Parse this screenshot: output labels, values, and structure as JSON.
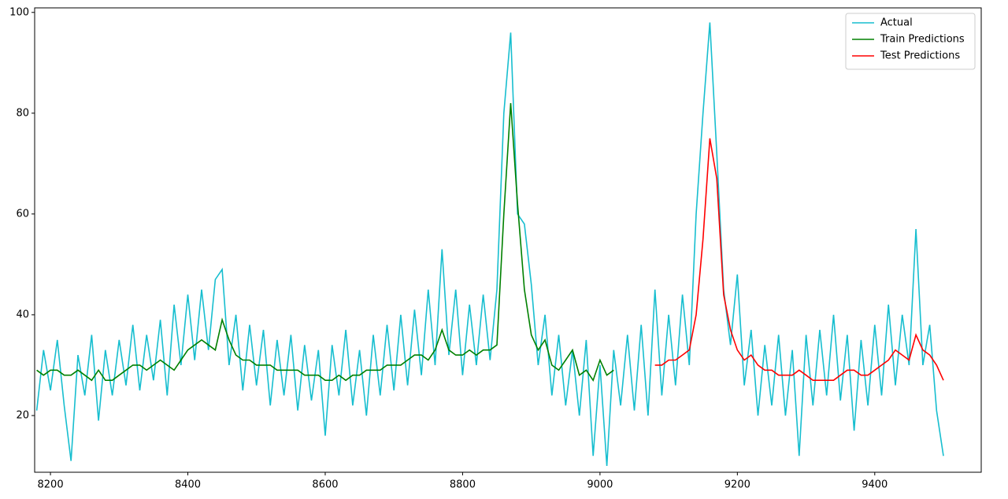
{
  "chart_data": {
    "type": "line",
    "x": [
      8180,
      8190,
      8200,
      8210,
      8220,
      8230,
      8240,
      8250,
      8260,
      8270,
      8280,
      8290,
      8300,
      8310,
      8320,
      8330,
      8340,
      8350,
      8360,
      8370,
      8380,
      8390,
      8400,
      8410,
      8420,
      8430,
      8440,
      8450,
      8460,
      8470,
      8480,
      8490,
      8500,
      8510,
      8520,
      8530,
      8540,
      8550,
      8560,
      8570,
      8580,
      8590,
      8600,
      8610,
      8620,
      8630,
      8640,
      8650,
      8660,
      8670,
      8680,
      8690,
      8700,
      8710,
      8720,
      8730,
      8740,
      8750,
      8760,
      8770,
      8780,
      8790,
      8800,
      8810,
      8820,
      8830,
      8840,
      8850,
      8860,
      8870,
      8880,
      8890,
      8900,
      8910,
      8920,
      8930,
      8940,
      8950,
      8960,
      8970,
      8980,
      8990,
      9000,
      9010,
      9020,
      9030,
      9040,
      9050,
      9060,
      9070,
      9080,
      9090,
      9100,
      9110,
      9120,
      9130,
      9140,
      9150,
      9160,
      9170,
      9180,
      9190,
      9200,
      9210,
      9220,
      9230,
      9240,
      9250,
      9260,
      9270,
      9280,
      9290,
      9300,
      9310,
      9320,
      9330,
      9340,
      9350,
      9360,
      9370,
      9380,
      9390,
      9400,
      9410,
      9420,
      9430,
      9440,
      9450,
      9460,
      9470,
      9480,
      9490,
      9500
    ],
    "series": [
      {
        "name": "Actual",
        "color": "#17becf",
        "values": [
          21,
          33,
          25,
          35,
          22,
          11,
          32,
          24,
          36,
          19,
          33,
          24,
          35,
          26,
          38,
          25,
          36,
          27,
          39,
          24,
          42,
          30,
          44,
          31,
          45,
          33,
          47,
          49,
          30,
          40,
          25,
          38,
          26,
          37,
          22,
          35,
          24,
          36,
          21,
          34,
          23,
          33,
          16,
          34,
          24,
          37,
          22,
          33,
          20,
          36,
          24,
          38,
          25,
          40,
          26,
          41,
          28,
          45,
          30,
          53,
          32,
          45,
          28,
          42,
          30,
          44,
          31,
          45,
          80,
          96,
          60,
          58,
          46,
          30,
          40,
          24,
          36,
          22,
          33,
          20,
          35,
          12,
          30,
          10,
          33,
          22,
          36,
          21,
          38,
          20,
          45,
          24,
          40,
          26,
          44,
          30,
          60,
          80,
          98,
          72,
          45,
          34,
          48,
          26,
          37,
          20,
          34,
          22,
          36,
          20,
          33,
          12,
          36,
          22,
          37,
          24,
          40,
          23,
          36,
          17,
          35,
          22,
          38,
          24,
          42,
          26,
          40,
          30,
          57,
          30,
          38,
          21,
          12
        ]
      },
      {
        "name": "Train Predictions",
        "color": "#008000",
        "values": [
          29,
          28,
          29,
          29,
          28,
          28,
          29,
          28,
          27,
          29,
          27,
          27,
          28,
          29,
          30,
          30,
          29,
          30,
          31,
          30,
          29,
          31,
          33,
          34,
          35,
          34,
          33,
          39,
          35,
          32,
          31,
          31,
          30,
          30,
          30,
          29,
          29,
          29,
          29,
          28,
          28,
          28,
          27,
          27,
          28,
          27,
          28,
          28,
          29,
          29,
          29,
          30,
          30,
          30,
          31,
          32,
          32,
          31,
          33,
          37,
          33,
          32,
          32,
          33,
          32,
          33,
          33,
          34,
          60,
          82,
          62,
          45,
          36,
          33,
          35,
          30,
          29,
          31,
          33,
          28,
          29,
          27,
          31,
          28,
          29,
          null,
          null,
          null,
          null,
          null,
          null,
          null,
          null,
          null,
          null,
          null,
          null,
          null,
          null,
          null,
          null,
          null,
          null,
          null,
          null,
          null,
          null,
          null,
          null,
          null,
          null,
          null,
          null,
          null,
          null,
          null,
          null,
          null,
          null,
          null,
          null,
          null,
          null,
          null,
          null,
          null,
          null,
          null,
          null,
          null,
          null,
          null,
          null
        ]
      },
      {
        "name": "Test Predictions",
        "color": "#ff0000",
        "values": [
          null,
          null,
          null,
          null,
          null,
          null,
          null,
          null,
          null,
          null,
          null,
          null,
          null,
          null,
          null,
          null,
          null,
          null,
          null,
          null,
          null,
          null,
          null,
          null,
          null,
          null,
          null,
          null,
          null,
          null,
          null,
          null,
          null,
          null,
          null,
          null,
          null,
          null,
          null,
          null,
          null,
          null,
          null,
          null,
          null,
          null,
          null,
          null,
          null,
          null,
          null,
          null,
          null,
          null,
          null,
          null,
          null,
          null,
          null,
          null,
          null,
          null,
          null,
          null,
          null,
          null,
          null,
          null,
          null,
          null,
          null,
          null,
          null,
          null,
          null,
          null,
          null,
          null,
          null,
          null,
          null,
          null,
          null,
          null,
          null,
          null,
          null,
          null,
          null,
          null,
          30,
          30,
          31,
          31,
          32,
          33,
          40,
          55,
          75,
          67,
          44,
          37,
          33,
          31,
          32,
          30,
          29,
          29,
          28,
          28,
          28,
          29,
          28,
          27,
          27,
          27,
          27,
          28,
          29,
          29,
          28,
          28,
          29,
          30,
          31,
          33,
          32,
          31,
          36,
          33,
          32,
          30,
          27
        ]
      }
    ],
    "xlim": [
      8177,
      9555
    ],
    "ylim": [
      8.75,
      100.9
    ],
    "xticks": [
      8200,
      8400,
      8600,
      8800,
      9000,
      9200,
      9400
    ],
    "yticks": [
      20,
      40,
      60,
      80,
      100
    ],
    "legend": "upper right"
  }
}
